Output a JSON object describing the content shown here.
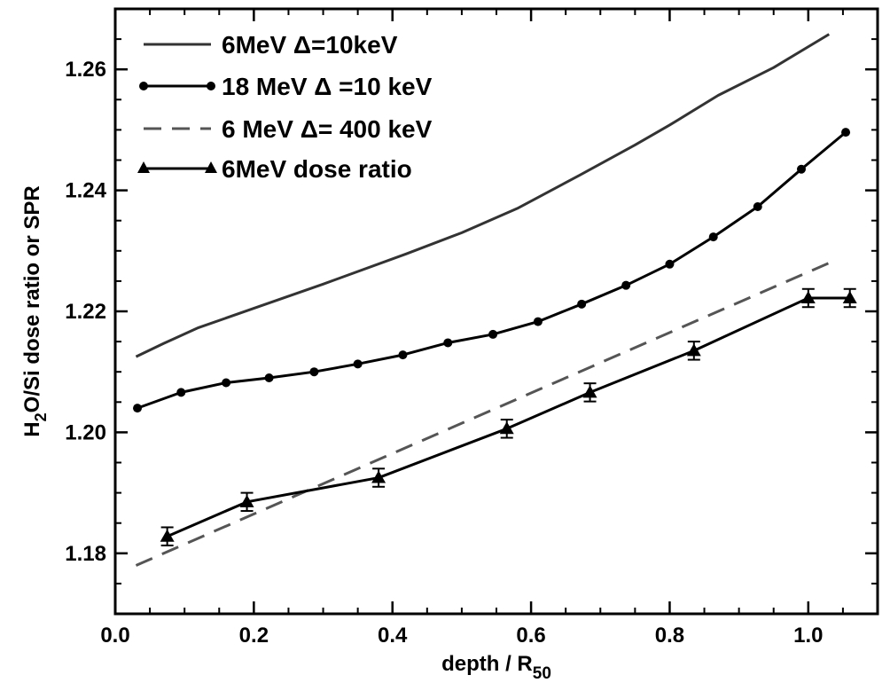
{
  "chart_data": {
    "type": "line",
    "xlabel": "depth / R",
    "xlabel_sub": "50",
    "ylabel": {
      "prefix": "H",
      "sub": "2",
      "rest": "O/Si dose ratio or SPR"
    },
    "xlim": [
      0.0,
      1.1
    ],
    "ylim": [
      1.17,
      1.27
    ],
    "x_ticks": [
      0.0,
      0.2,
      0.4,
      0.6,
      0.8,
      1.0
    ],
    "x_tick_labels": [
      "0.0",
      "0.2",
      "0.4",
      "0.6",
      "0.8",
      "1.0"
    ],
    "y_ticks": [
      1.18,
      1.2,
      1.22,
      1.24,
      1.26
    ],
    "y_tick_labels": [
      "1.18",
      "1.20",
      "1.22",
      "1.24",
      "1.26"
    ],
    "grid": false,
    "legend_position": "top-left",
    "series": [
      {
        "name": "6MeV Δ=10keV",
        "style": "solid",
        "marker": "none",
        "color": "#333333",
        "x": [
          0.03,
          0.07,
          0.12,
          0.2,
          0.3,
          0.42,
          0.5,
          0.58,
          0.67,
          0.75,
          0.8,
          0.87,
          0.95,
          1.03
        ],
        "y": [
          1.2125,
          1.2147,
          1.2173,
          1.2205,
          1.2245,
          1.2295,
          1.233,
          1.237,
          1.2425,
          1.2475,
          1.2508,
          1.2557,
          1.2603,
          1.2658
        ]
      },
      {
        "name": "18 MeV Δ =10 keV",
        "style": "solid",
        "marker": "circle",
        "color": "#000000",
        "x": [
          0.032,
          0.095,
          0.16,
          0.222,
          0.287,
          0.35,
          0.415,
          0.48,
          0.545,
          0.61,
          0.673,
          0.737,
          0.8,
          0.863,
          0.927,
          0.99,
          1.054
        ],
        "y": [
          1.204,
          1.2066,
          1.2082,
          1.209,
          1.21,
          1.2113,
          1.2128,
          1.2148,
          1.2162,
          1.2183,
          1.2212,
          1.2243,
          1.2278,
          1.2323,
          1.2373,
          1.2435,
          1.2496
        ]
      },
      {
        "name": "6 MeV Δ= 400 keV",
        "style": "dashed",
        "marker": "none",
        "color": "#555555",
        "x": [
          0.03,
          1.03
        ],
        "y": [
          1.178,
          1.228
        ]
      },
      {
        "name": "6MeV dose ratio",
        "style": "solid",
        "marker": "triangle",
        "color": "#000000",
        "x": [
          0.075,
          0.19,
          0.38,
          0.565,
          0.685,
          0.835,
          1.0,
          1.06
        ],
        "y": [
          1.1828,
          1.1885,
          1.1925,
          1.2006,
          1.2066,
          1.2135,
          1.2222,
          1.2222
        ],
        "error": [
          0.0015,
          0.0015,
          0.0015,
          0.0015,
          0.0015,
          0.0015,
          0.0015,
          0.0015
        ]
      }
    ]
  }
}
